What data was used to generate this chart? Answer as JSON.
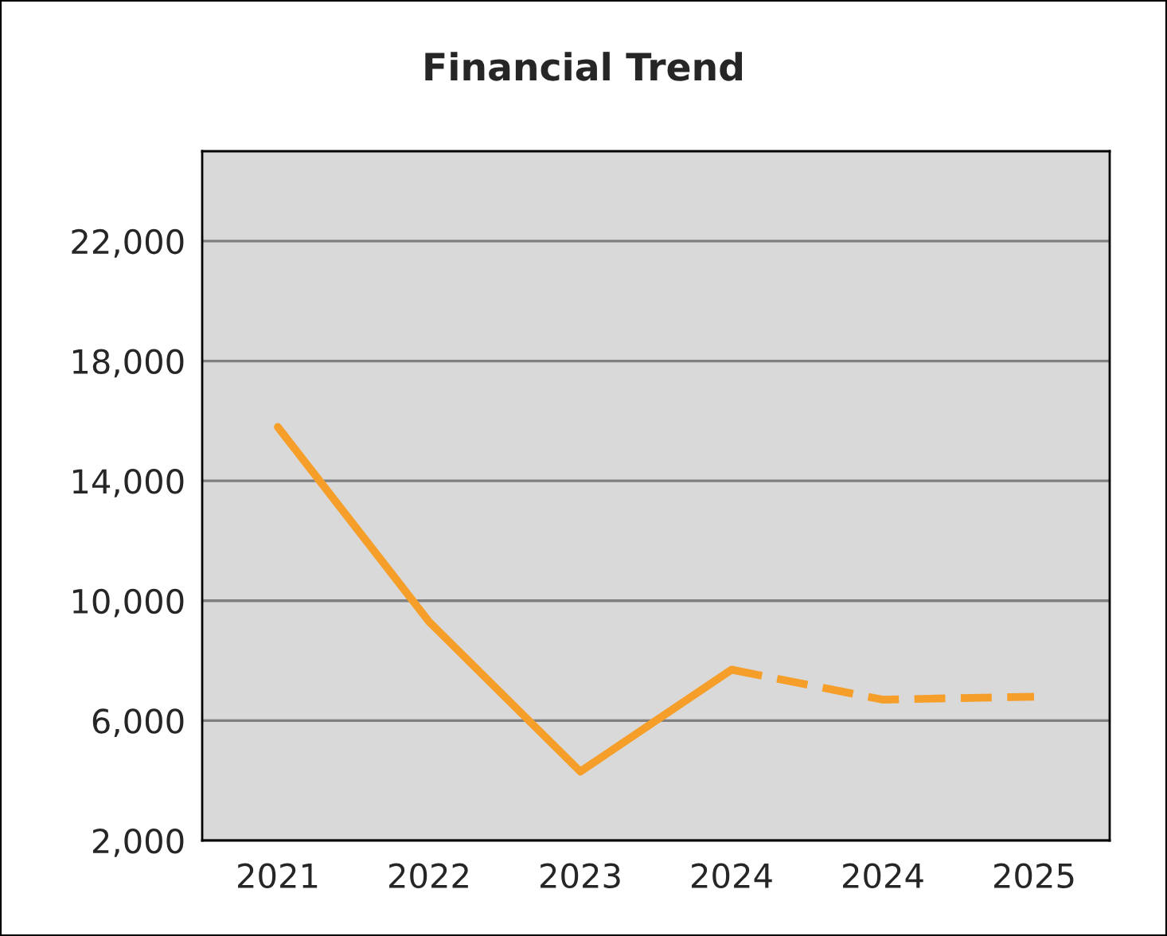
{
  "chart_data": {
    "type": "line",
    "title": "Financial Trend",
    "categories": [
      "2021",
      "2022",
      "2023",
      "2024",
      "2024",
      "2025"
    ],
    "series": [
      {
        "color": "#f59f2a",
        "line_style": "solid",
        "values": [
          15800,
          9300,
          4300,
          7700,
          null,
          null
        ]
      },
      {
        "color": "#f59f2a",
        "line_style": "dashed",
        "values": [
          null,
          null,
          null,
          7700,
          6700,
          6800
        ]
      }
    ],
    "ylim": [
      2000,
      25000
    ],
    "yticks": [
      {
        "value": 2000,
        "label": "2,000"
      },
      {
        "value": 6000,
        "label": "6,000"
      },
      {
        "value": 10000,
        "label": "10,000"
      },
      {
        "value": 14000,
        "label": "14,000"
      },
      {
        "value": 18000,
        "label": "18,000"
      },
      {
        "value": 22000,
        "label": "22,000"
      }
    ],
    "grid": "y",
    "marker": "none"
  }
}
